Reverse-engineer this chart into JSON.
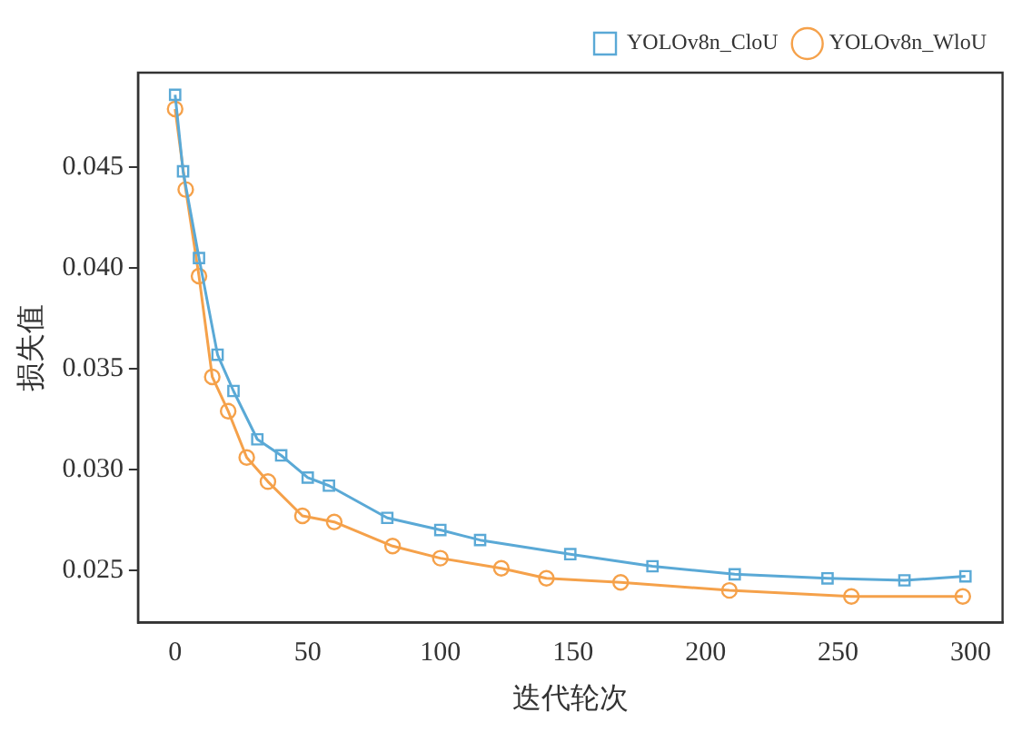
{
  "chart_data": {
    "type": "line",
    "xlabel": "迭代轮次",
    "ylabel": "损失值",
    "xlim": [
      -14,
      312
    ],
    "xticks": [
      0,
      50,
      100,
      150,
      200,
      250,
      300
    ],
    "ylim": [
      0.0224,
      0.0497
    ],
    "yticks": [
      0.025,
      {
        "value": 0.03,
        "label": "0.030"
      },
      0.035,
      {
        "value": 0.04,
        "label": "0.040"
      },
      0.045
    ],
    "grid": false,
    "legend": "top right",
    "series": [
      {
        "name": "YOLOv8n_CloU",
        "color": "#5aa9d6",
        "marker": "square",
        "x": [
          0,
          3,
          9,
          16,
          22,
          31,
          40,
          50,
          58,
          80,
          100,
          115,
          149,
          180,
          211,
          246,
          275,
          298
        ],
        "values": [
          0.0486,
          0.0448,
          0.0405,
          0.0357,
          0.0339,
          0.0315,
          0.0307,
          0.0296,
          0.0292,
          0.0276,
          0.027,
          0.0265,
          0.0258,
          0.0252,
          0.0248,
          0.0246,
          0.0245,
          0.0247
        ]
      },
      {
        "name": "YOLOv8n_WloU",
        "color": "#f5a14a",
        "marker": "circle",
        "x": [
          0,
          4,
          9,
          14,
          20,
          27,
          35,
          48,
          60,
          82,
          100,
          123,
          140,
          168,
          209,
          255,
          297
        ],
        "values": [
          0.0479,
          0.0439,
          0.0396,
          0.0346,
          0.0329,
          0.0306,
          0.0294,
          0.0277,
          0.0274,
          0.0262,
          0.0256,
          0.0251,
          0.0246,
          0.0244,
          0.024,
          0.0237,
          0.0237
        ]
      }
    ]
  }
}
